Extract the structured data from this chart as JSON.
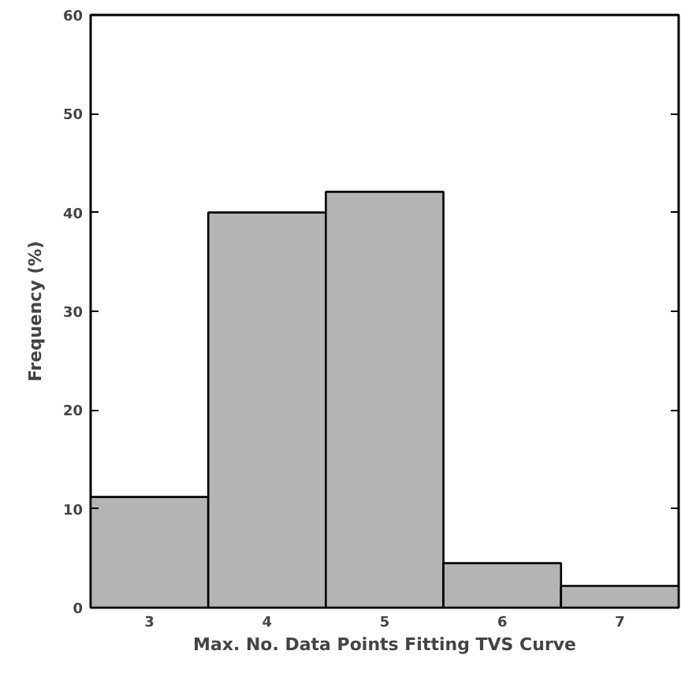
{
  "chart_data": {
    "type": "histogram",
    "xlabel": "Max. No. Data Points Fitting TVS Curve",
    "ylabel": "Frequency (%)",
    "bins": [
      2.5,
      3.5,
      4.5,
      5.5,
      6.5,
      7.5
    ],
    "values": [
      11.2,
      40.0,
      42.1,
      4.5,
      2.2
    ],
    "color": "#b4b4b4",
    "xlim": [
      2.5,
      7.5
    ],
    "xticks": [
      3,
      4,
      5,
      6,
      7
    ],
    "ylim": [
      0,
      60
    ],
    "yticks": [
      0,
      10,
      20,
      30,
      40,
      50,
      60
    ]
  }
}
